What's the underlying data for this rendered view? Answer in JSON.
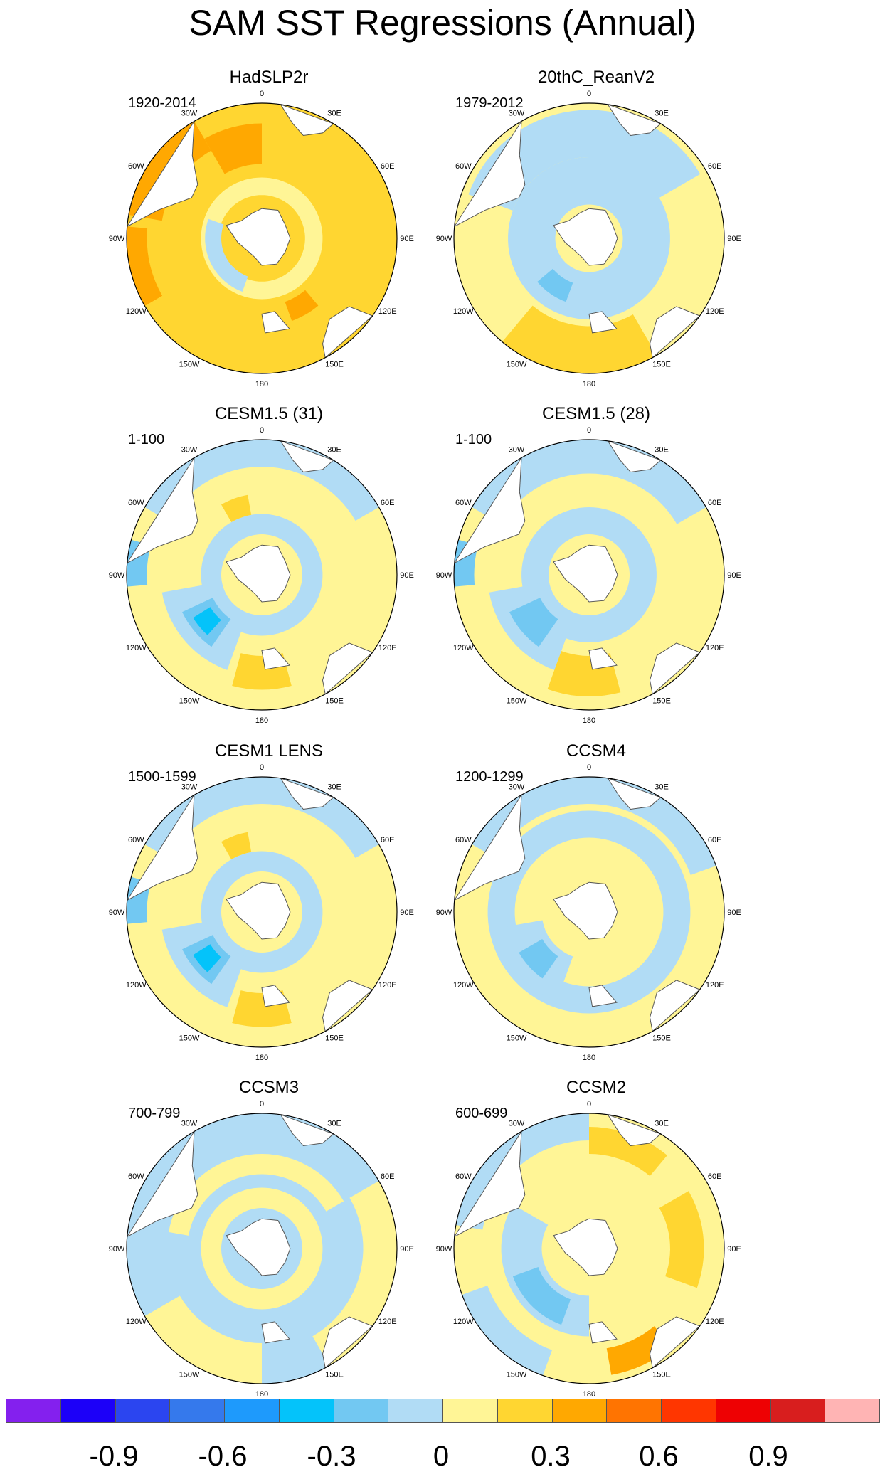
{
  "title": "SAM SST Regressions (Annual)",
  "lon_labels": [
    {
      "text": "0",
      "lon": 0
    },
    {
      "text": "30E",
      "lon": 30
    },
    {
      "text": "60E",
      "lon": 60
    },
    {
      "text": "90E",
      "lon": 90
    },
    {
      "text": "120E",
      "lon": 120
    },
    {
      "text": "150E",
      "lon": 150
    },
    {
      "text": "180",
      "lon": 180
    },
    {
      "text": "150W",
      "lon": -150
    },
    {
      "text": "120W",
      "lon": -120
    },
    {
      "text": "90W",
      "lon": -90
    },
    {
      "text": "60W",
      "lon": -60
    },
    {
      "text": "30W",
      "lon": -30
    }
  ],
  "panels": [
    {
      "title": "HadSLP2r",
      "years": "1920-2014",
      "scheme": "warm"
    },
    {
      "title": "20thC_ReanV2",
      "years": "1979-2012",
      "scheme": "mixed-a"
    },
    {
      "title": "CESM1.5 (31)",
      "years": "1-100",
      "scheme": "model-a"
    },
    {
      "title": "CESM1.5 (28)",
      "years": "1-100",
      "scheme": "model-b"
    },
    {
      "title": "CESM1 LENS",
      "years": "1500-1599",
      "scheme": "model-a"
    },
    {
      "title": "CCSM4",
      "years": "1200-1299",
      "scheme": "model-c"
    },
    {
      "title": "CCSM3",
      "years": "700-799",
      "scheme": "model-d"
    },
    {
      "title": "CCSM2",
      "years": "600-699",
      "scheme": "model-e"
    }
  ],
  "colorbar": {
    "colors": [
      "#8420ee",
      "#1c00f8",
      "#2b45f0",
      "#3579ec",
      "#1e9afc",
      "#04c3fa",
      "#72c8f2",
      "#b1dcf5",
      "#fff596",
      "#ffd631",
      "#ffa801",
      "#ff7401",
      "#ff3600",
      "#ee0103",
      "#d81e1e",
      "#ffb4b4"
    ],
    "labels": [
      "-0.9",
      "-0.6",
      "-0.3",
      "0",
      "0.3",
      "0.6",
      "0.9"
    ]
  },
  "chart_data": {
    "type": "heatmap",
    "title": "SAM SST Regressions (Annual)",
    "projection": "south-polar stereographic",
    "colorbar_range": [
      -1.05,
      1.05
    ],
    "colorbar_interval": 0.15,
    "tick_labels": [
      "-0.9",
      "-0.6",
      "-0.3",
      "0",
      "0.3",
      "0.6",
      "0.9"
    ],
    "panels": [
      "HadSLP2r",
      "20thC_ReanV2",
      "CESM1.5 (31)",
      "CESM1.5 (28)",
      "CESM1 LENS",
      "CCSM4",
      "CCSM3",
      "CCSM2"
    ]
  }
}
